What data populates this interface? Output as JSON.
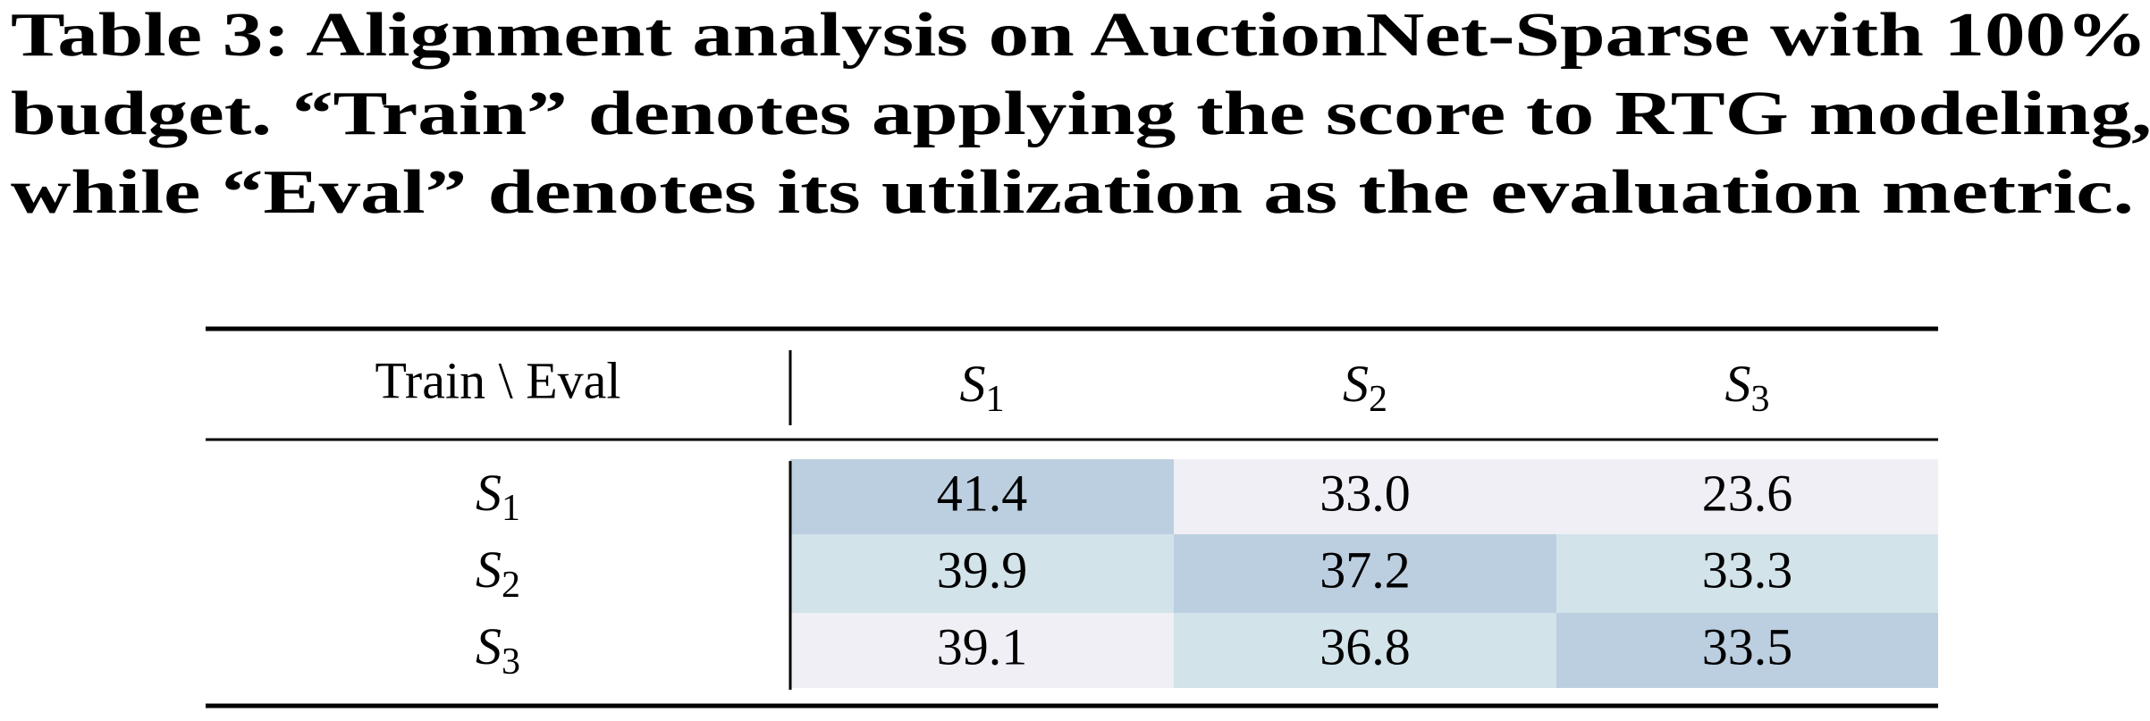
{
  "caption": {
    "lines": [
      "Table 3: Alignment analysis on AuctionNet-Sparse with 100%",
      "budget. “Train” denotes applying the score to RTG modeling,",
      "while “Eval” denotes its utilization as the evaluation metric."
    ]
  },
  "table": {
    "corner": "Train \\ Eval",
    "columns": [
      {
        "symbol": "S",
        "index": "1"
      },
      {
        "symbol": "S",
        "index": "2"
      },
      {
        "symbol": "S",
        "index": "3"
      }
    ],
    "rows": [
      {
        "label": {
          "symbol": "S",
          "index": "1"
        },
        "cells": [
          "41.4",
          "33.0",
          "23.6"
        ],
        "shades": [
          "#bccfe0",
          "#f0eff6",
          "#f0eff6"
        ]
      },
      {
        "label": {
          "symbol": "S",
          "index": "2"
        },
        "cells": [
          "39.9",
          "37.2",
          "33.3"
        ],
        "shades": [
          "#d2e3ea",
          "#bccfe0",
          "#d2e3ea"
        ]
      },
      {
        "label": {
          "symbol": "S",
          "index": "3"
        },
        "cells": [
          "39.1",
          "36.8",
          "33.5"
        ],
        "shades": [
          "#f0eff6",
          "#d2e3ea",
          "#bccfe0"
        ]
      }
    ]
  }
}
